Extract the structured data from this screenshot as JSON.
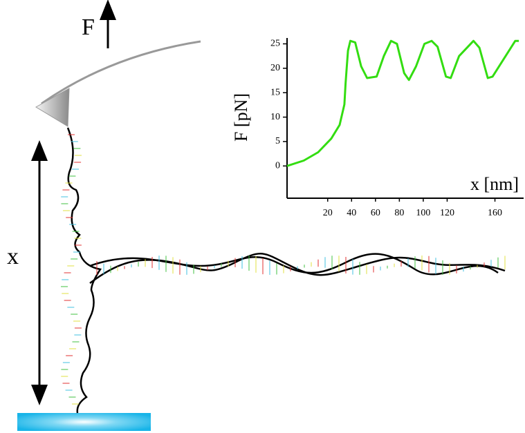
{
  "labels": {
    "force": "F",
    "extension": "x"
  },
  "chart_data": {
    "type": "line",
    "xlabel": "x [nm]",
    "ylabel": "F [pN]",
    "x": [
      -14,
      0,
      12,
      23,
      30,
      34,
      35,
      36,
      37,
      39,
      43,
      48,
      53,
      61,
      67,
      73,
      78,
      84,
      88,
      94,
      101,
      107,
      112,
      119,
      123,
      130,
      142,
      147,
      154,
      158,
      177,
      180
    ],
    "series": [
      {
        "color": "#33dd11",
        "values": [
          0,
          1.1,
          2.8,
          5.6,
          8.4,
          12.6,
          16.9,
          20.4,
          23.6,
          25.6,
          25.3,
          20.4,
          18,
          18.3,
          22.5,
          25.6,
          25,
          19,
          17.6,
          20.4,
          25,
          25.6,
          24.4,
          18.3,
          18,
          22.5,
          25.6,
          24.2,
          18,
          18.3,
          25.6,
          25.6
        ]
      }
    ],
    "xlim": [
      -14,
      184
    ],
    "xticks": [
      20,
      40,
      60,
      80,
      100,
      120,
      160
    ],
    "ylim": [
      -6.6,
      26.2
    ],
    "yticks": [
      0,
      5,
      10,
      15,
      20,
      25
    ]
  }
}
